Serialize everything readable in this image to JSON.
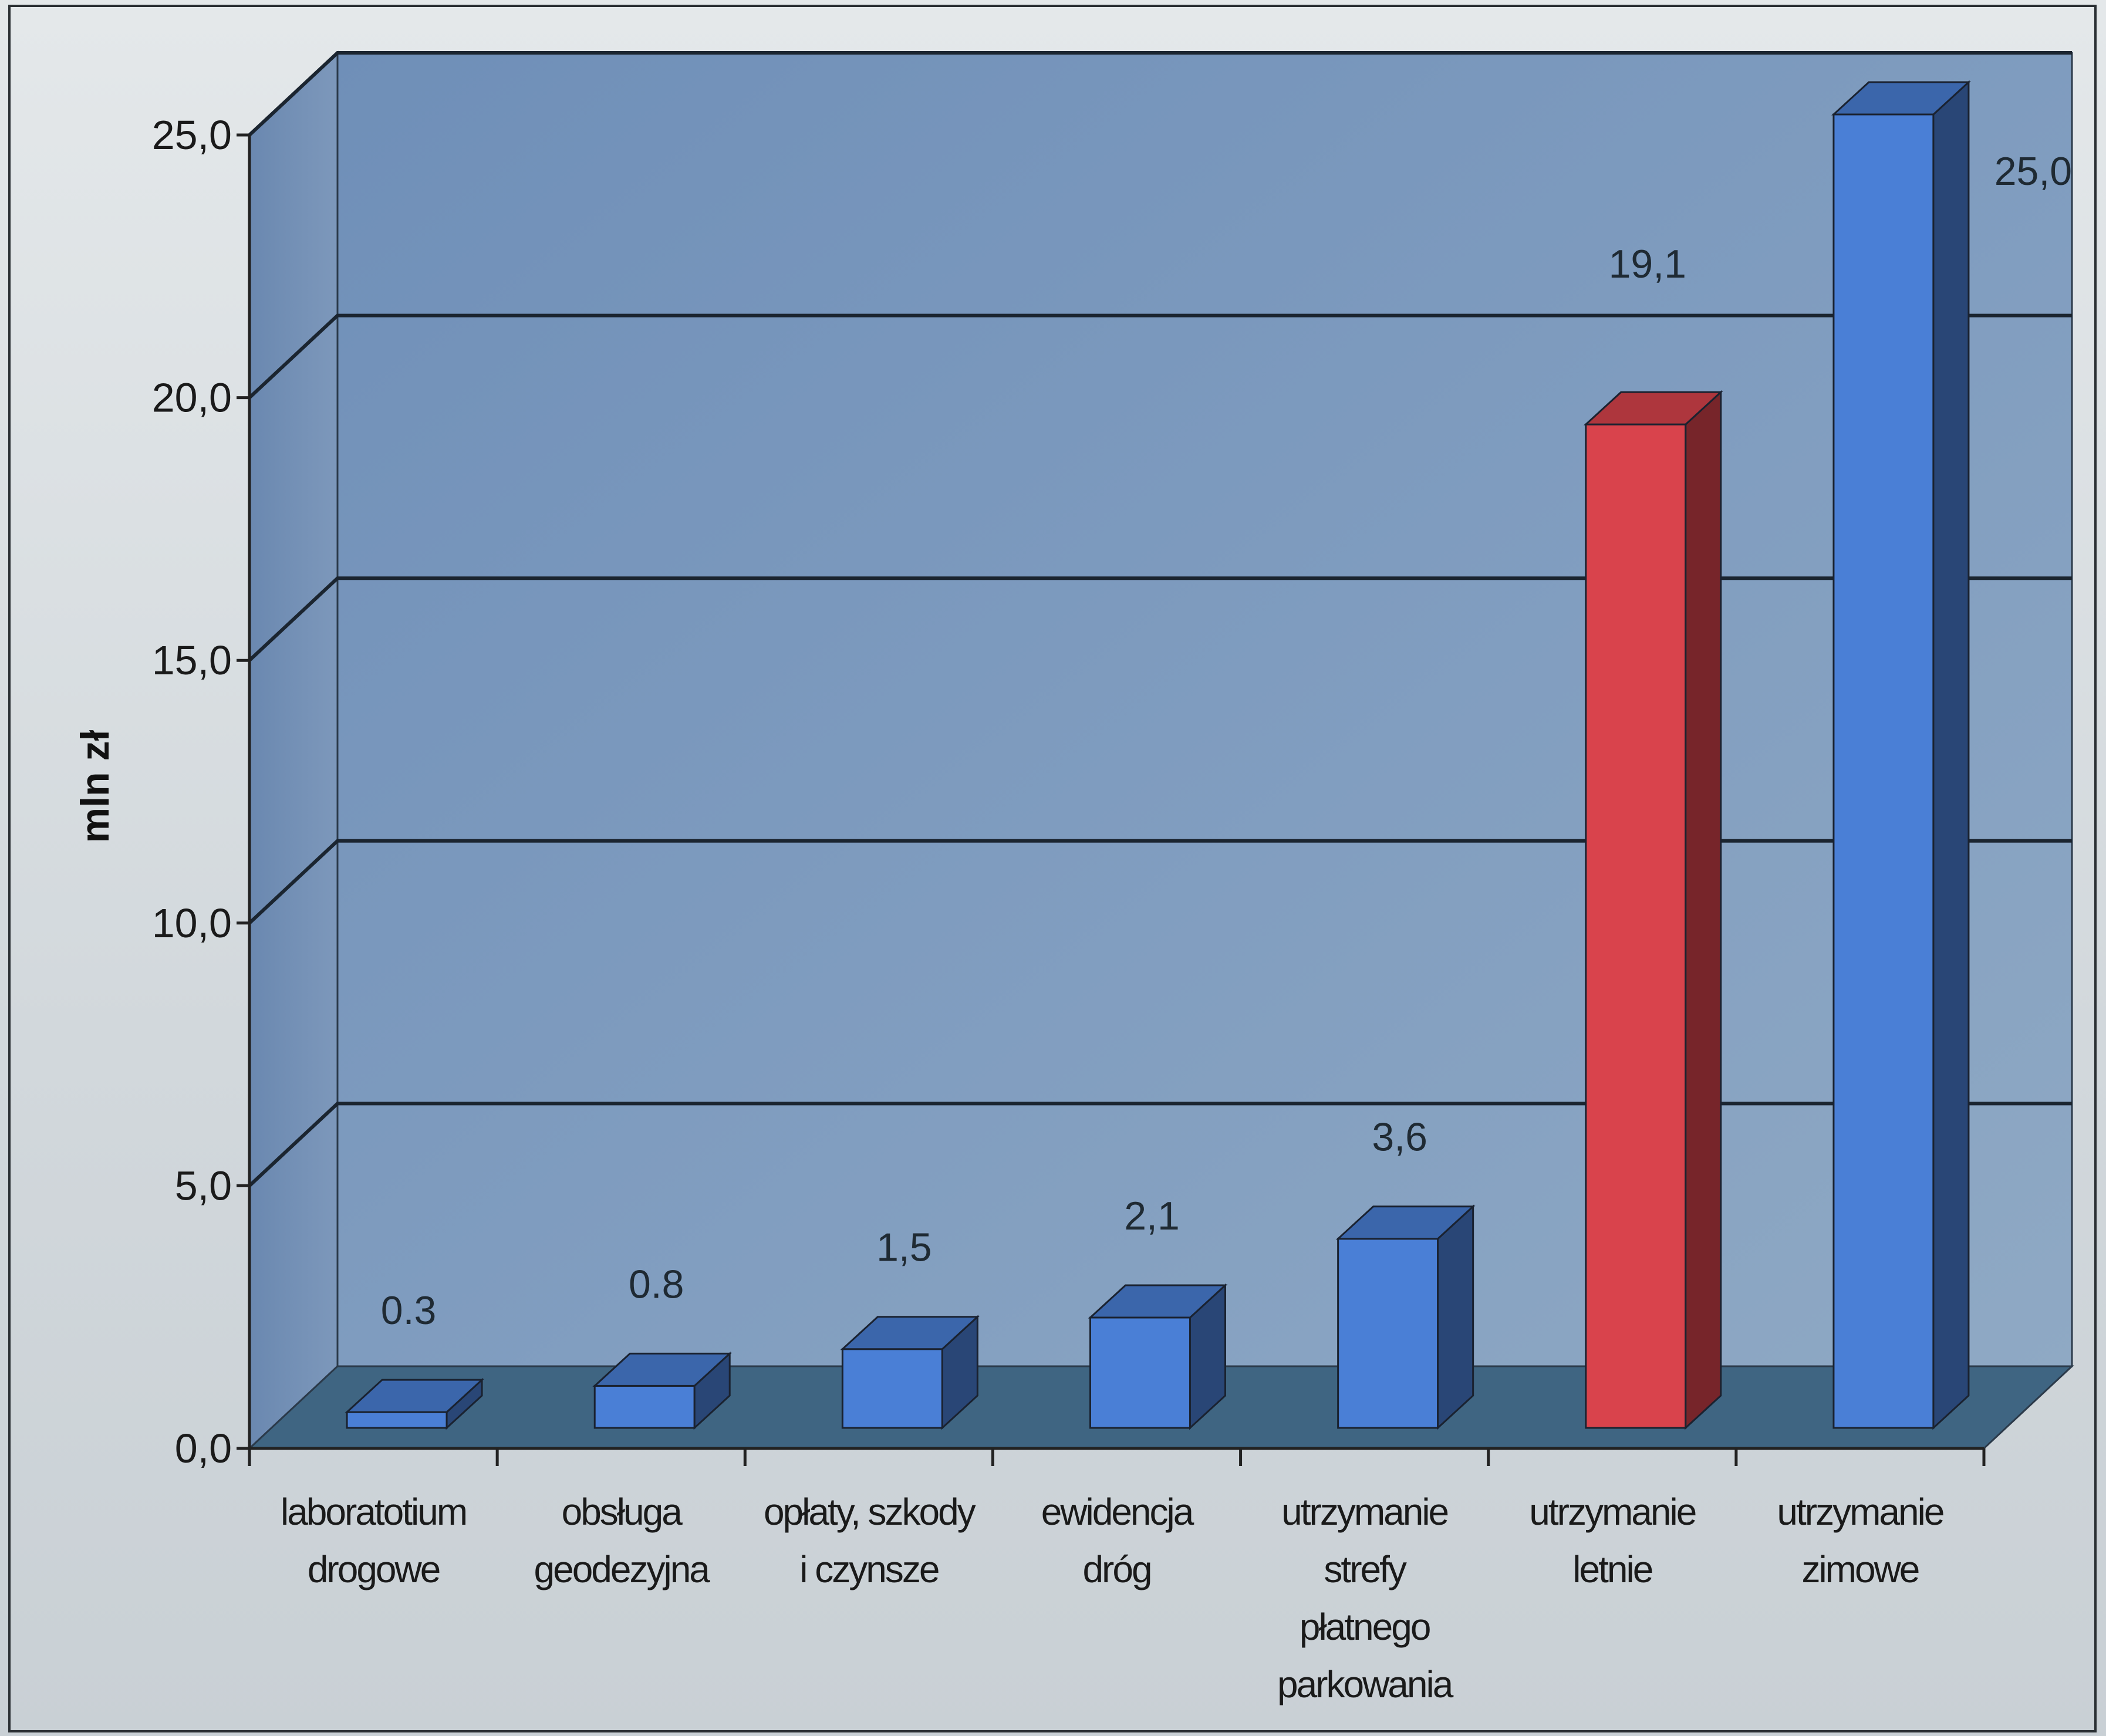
{
  "chart_data": {
    "type": "bar",
    "categories": [
      [
        "laboratotium",
        "drogowe"
      ],
      [
        "obsługa",
        "geodezyjna"
      ],
      [
        "opłaty, szkody",
        "i czynsze"
      ],
      [
        "ewidencja",
        "dróg"
      ],
      [
        "utrzymanie",
        "strefy",
        "płatnego",
        "parkowania"
      ],
      [
        "utrzymanie",
        "letnie"
      ],
      [
        "utrzymanie",
        "zimowe"
      ]
    ],
    "values": [
      0.3,
      0.8,
      1.5,
      2.1,
      3.6,
      19.1,
      25.0
    ],
    "value_labels": [
      "0.3",
      "0.8",
      "1,5",
      "2,1",
      "3,6",
      "19,1",
      "25,0"
    ],
    "bar_colors": [
      "#4a7fd6",
      "#4a7fd6",
      "#4a7fd6",
      "#4a7fd6",
      "#4a7fd6",
      "#d9434c",
      "#4a7fd6"
    ],
    "ylabel": "mln zł",
    "ylim": [
      0,
      25
    ],
    "yticks": [
      0,
      5,
      10,
      15,
      20,
      25
    ],
    "ytick_labels": [
      "0,0",
      "5,0",
      "10,0",
      "15,0",
      "20,0",
      "25,0"
    ],
    "grid": true,
    "style": "3d"
  }
}
